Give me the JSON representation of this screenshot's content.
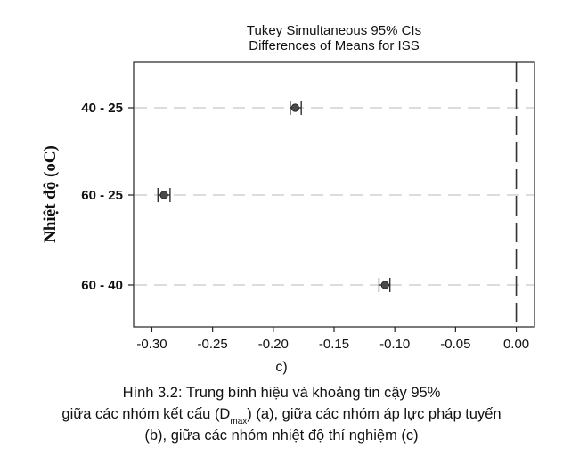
{
  "chart_data": {
    "type": "interval",
    "title": [
      "Tukey Simultaneous 95% CIs",
      "Differences of Means for ISS"
    ],
    "xlabel": "",
    "ylabel": "Nhiệt độ (oC)",
    "xlim": [
      -0.315,
      0.015
    ],
    "xticks": [
      -0.3,
      -0.25,
      -0.2,
      -0.15,
      -0.1,
      -0.05,
      0.0
    ],
    "xtick_labels": [
      "-0.30",
      "-0.25",
      "-0.20",
      "-0.15",
      "-0.10",
      "-0.05",
      "0.00"
    ],
    "reference_line": 0.0,
    "grid": "horizontal dashed",
    "categories": [
      "40 - 25",
      "60 - 25",
      "60 - 40"
    ],
    "points": [
      {
        "label": "40 - 25",
        "mean": -0.182,
        "lower": -0.186,
        "upper": -0.177
      },
      {
        "label": "60 - 25",
        "mean": -0.29,
        "lower": -0.295,
        "upper": -0.285
      },
      {
        "label": "60 - 40",
        "mean": -0.108,
        "lower": -0.113,
        "upper": -0.104
      }
    ]
  },
  "subfigure_label": "c)",
  "caption": {
    "line1": "Hình 3.2: Trung bình hiệu và khoảng tin cậy 95%",
    "line2_pre": "giữa các nhóm kết cấu (D",
    "line2_sub": "max",
    "line2_post": ") (a), giữa các nhóm áp lực pháp tuyến",
    "line3": "(b), giữa các nhóm nhiệt độ thí nghiệm (c)"
  },
  "colors": {
    "frame": "#222222",
    "point": "#4a4a4a",
    "grid": "#c8c8c8",
    "reference": "#333333"
  }
}
